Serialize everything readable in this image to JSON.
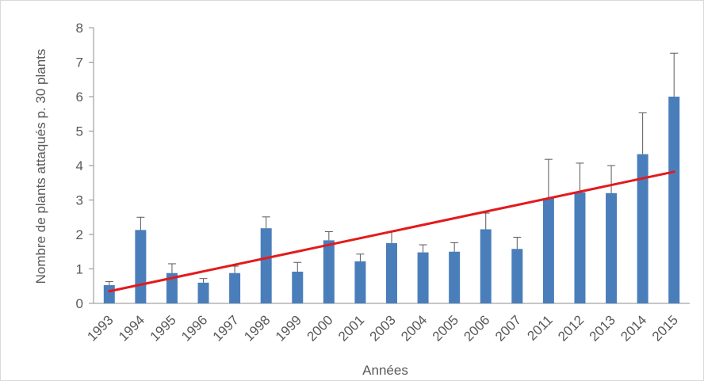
{
  "chart_data": {
    "type": "bar",
    "title": "",
    "xlabel": "Années",
    "ylabel": "Nombre de plants attaqués p. 30 plants",
    "ylim": [
      0,
      8
    ],
    "yticks": [
      0,
      1,
      2,
      3,
      4,
      5,
      6,
      7,
      8
    ],
    "grid": false,
    "categories": [
      "1993",
      "1994",
      "1995",
      "1996",
      "1997",
      "1998",
      "1999",
      "2000",
      "2001",
      "2003",
      "2004",
      "2005",
      "2006",
      "2007",
      "2011",
      "2012",
      "2013",
      "2014",
      "2015"
    ],
    "series": [
      {
        "values": [
          0.53,
          2.13,
          0.88,
          0.6,
          0.88,
          2.18,
          0.92,
          1.83,
          1.22,
          1.75,
          1.48,
          1.5,
          2.15,
          1.58,
          3.05,
          3.22,
          3.2,
          4.33,
          6.0
        ],
        "error_upper": [
          0.1,
          0.37,
          0.27,
          0.12,
          0.2,
          0.33,
          0.27,
          0.25,
          0.21,
          0.33,
          0.22,
          0.26,
          0.47,
          0.34,
          1.13,
          0.85,
          0.8,
          1.2,
          1.26
        ],
        "color": "#4a7ebb"
      }
    ],
    "trendline": {
      "x_start": "1993",
      "y_start": 0.35,
      "x_end": "2015",
      "y_end": 3.82,
      "color": "#e31a1c"
    }
  }
}
